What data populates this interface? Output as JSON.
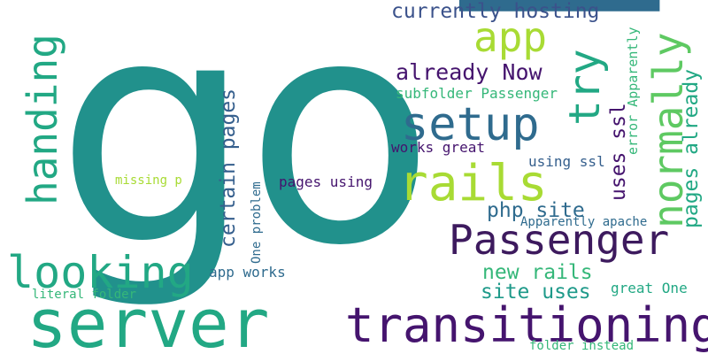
{
  "colors": {
    "background": "#ffffff",
    "teal": "#21918c",
    "blue": "#2f6b8e",
    "navy": "#3b528b",
    "purple": "#45146e",
    "dark_purple": "#3d1a5e",
    "green": "#22a884",
    "mid_green": "#35b779",
    "light_green": "#5ec962",
    "lime": "#a8db34",
    "cyan": "#1f9a8a",
    "slate": "#355f8d"
  },
  "words": [
    {
      "id": "go",
      "text": "go",
      "color": "#21918c"
    },
    {
      "id": "p",
      "text": "p",
      "color": "#2f6b8e"
    },
    {
      "id": "server",
      "text": "server",
      "color": "#22a884"
    },
    {
      "id": "transitioning",
      "text": "transitioning",
      "color": "#45146e"
    },
    {
      "id": "passenger",
      "text": "Passenger",
      "color": "#3d1a5e"
    },
    {
      "id": "looking",
      "text": "looking",
      "color": "#22a884"
    },
    {
      "id": "handing",
      "text": "handing",
      "color": "#22a884"
    },
    {
      "id": "setup",
      "text": "setup",
      "color": "#2f6b8e"
    },
    {
      "id": "rails",
      "text": "rails",
      "color": "#a8db34"
    },
    {
      "id": "app",
      "text": "app",
      "color": "#a8db34"
    },
    {
      "id": "try",
      "text": "try",
      "color": "#22a884"
    },
    {
      "id": "normally",
      "text": "normally",
      "color": "#5ec962"
    },
    {
      "id": "pages_already",
      "text": "pages already",
      "color": "#22a884"
    },
    {
      "id": "currently_hosting",
      "text": "currently hosting",
      "color": "#3b528b"
    },
    {
      "id": "already_now",
      "text": "already Now",
      "color": "#45146e"
    },
    {
      "id": "subfolder_passenger",
      "text": "subfolder Passenger",
      "color": "#35b779"
    },
    {
      "id": "uses_ssl",
      "text": "uses ssl",
      "color": "#45146e"
    },
    {
      "id": "error_apparently",
      "text": "error Apparently",
      "color": "#35b779"
    },
    {
      "id": "certain_pages",
      "text": "certain pages",
      "color": "#355f8d"
    },
    {
      "id": "works_great",
      "text": "works great",
      "color": "#45146e"
    },
    {
      "id": "using_ssl",
      "text": "using ssl",
      "color": "#355f8d"
    },
    {
      "id": "php_site",
      "text": "php site",
      "color": "#2f6b8e"
    },
    {
      "id": "pages_using",
      "text": "pages using",
      "color": "#45146e"
    },
    {
      "id": "one_problem",
      "text": "One problem",
      "color": "#2f6b8e"
    },
    {
      "id": "apparently_apache",
      "text": "Apparently apache",
      "color": "#2f6b8e"
    },
    {
      "id": "missing_p",
      "text": "missing p",
      "color": "#a8db34"
    },
    {
      "id": "new_rails",
      "text": "new rails",
      "color": "#35b779"
    },
    {
      "id": "site_uses",
      "text": "site uses",
      "color": "#1f9a8a"
    },
    {
      "id": "app_works",
      "text": "app works",
      "color": "#2f6b8e"
    },
    {
      "id": "great_one",
      "text": "great One",
      "color": "#22a884"
    },
    {
      "id": "literal_folder",
      "text": "literal folder",
      "color": "#35b779"
    },
    {
      "id": "folder_instead",
      "text": "folder instead",
      "color": "#35b779"
    }
  ]
}
